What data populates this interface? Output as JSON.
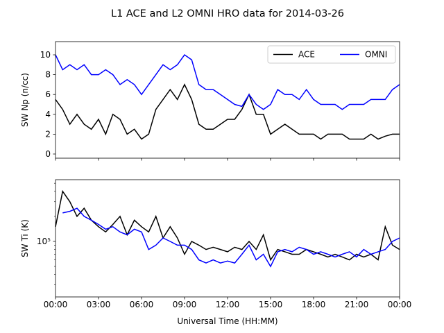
{
  "title": "L1 ACE and L2 OMNI HRO data for 2014-03-26",
  "chart_data": [
    {
      "type": "line",
      "ylabel": "SW Np (n/cc)",
      "legend": "upper right",
      "xlim": [
        0,
        24
      ],
      "xticks": [
        0,
        3,
        6,
        9,
        12,
        15,
        18,
        21,
        24
      ],
      "ylim": [
        -0.42,
        11.33
      ],
      "yticks": [
        0,
        2,
        4,
        6,
        8,
        10
      ],
      "x": [
        0,
        0.5,
        1,
        1.5,
        2,
        2.5,
        3,
        3.5,
        4,
        4.5,
        5,
        5.5,
        6,
        6.5,
        7,
        7.5,
        8,
        8.5,
        9,
        9.5,
        10,
        10.5,
        11,
        11.5,
        12,
        12.5,
        13,
        13.5,
        14,
        14.5,
        15,
        15.5,
        16,
        16.5,
        17,
        17.5,
        18,
        18.5,
        19,
        19.5,
        20,
        20.5,
        21,
        21.5,
        22,
        22.5,
        23,
        23.5,
        24
      ],
      "series": [
        {
          "name": "ACE",
          "color": "#000000",
          "values": [
            5.5,
            4.5,
            3,
            4,
            3,
            2.5,
            3.5,
            2,
            4,
            3.5,
            2,
            2.5,
            1.5,
            2,
            4.5,
            5.5,
            6.5,
            5.5,
            7,
            5.5,
            3,
            2.5,
            2.5,
            3,
            3.5,
            3.5,
            4.5,
            6,
            4,
            4,
            2,
            2.5,
            3,
            2.5,
            2,
            2,
            2,
            1.5,
            2,
            2,
            2,
            1.5,
            1.5,
            1.5,
            2,
            1.5,
            1.8,
            2,
            2
          ]
        },
        {
          "name": "OMNI",
          "color": "#0000ff",
          "values": [
            10,
            8.5,
            9,
            8.5,
            9,
            8,
            8,
            8.5,
            8,
            7,
            7.5,
            7,
            6,
            7,
            8,
            9,
            8.5,
            9,
            10,
            9.5,
            7,
            6.5,
            6.5,
            6,
            5.5,
            5,
            4.8,
            6,
            5,
            4.5,
            5,
            6.5,
            6,
            6,
            5.5,
            6.5,
            5.5,
            5,
            5,
            5,
            4.5,
            5,
            5,
            5,
            5.5,
            5.5,
            5.5,
            6.5,
            7
          ]
        }
      ]
    },
    {
      "type": "line",
      "ylabel": "SW Ti (K)",
      "xlabel": "Universal Time (HH:MM)",
      "yscale": "log",
      "xlim": [
        0,
        24
      ],
      "xticks": [
        {
          "value": 0,
          "label": "00:00"
        },
        {
          "value": 3,
          "label": "03:00"
        },
        {
          "value": 6,
          "label": "06:00"
        },
        {
          "value": 9,
          "label": "09:00"
        },
        {
          "value": 12,
          "label": "12:00"
        },
        {
          "value": 15,
          "label": "15:00"
        },
        {
          "value": 18,
          "label": "18:00"
        },
        {
          "value": 21,
          "label": "21:00"
        },
        {
          "value": 24,
          "label": "00:00"
        }
      ],
      "ylim": [
        21500,
        552000
      ],
      "yticks": [
        {
          "value": 100000,
          "label": "10⁵"
        }
      ],
      "yminorticks": [
        30000,
        40000,
        50000,
        60000,
        70000,
        80000,
        90000,
        200000,
        300000,
        400000,
        500000
      ],
      "x": [
        0,
        0.5,
        1,
        1.5,
        2,
        2.5,
        3,
        3.5,
        4,
        4.5,
        5,
        5.5,
        6,
        6.5,
        7,
        7.5,
        8,
        8.5,
        9,
        9.5,
        10,
        10.5,
        11,
        11.5,
        12,
        12.5,
        13,
        13.5,
        14,
        14.5,
        15,
        15.5,
        16,
        16.5,
        17,
        17.5,
        18,
        18.5,
        19,
        19.5,
        20,
        20.5,
        21,
        21.5,
        22,
        22.5,
        23,
        23.5,
        24
      ],
      "series": [
        {
          "name": "ACE",
          "color": "#000000",
          "values": [
            150000,
            400000,
            300000,
            200000,
            250000,
            180000,
            150000,
            130000,
            160000,
            200000,
            120000,
            180000,
            150000,
            130000,
            200000,
            110000,
            150000,
            110000,
            70000,
            100000,
            90000,
            80000,
            85000,
            80000,
            75000,
            85000,
            80000,
            100000,
            80000,
            120000,
            60000,
            80000,
            75000,
            70000,
            70000,
            80000,
            75000,
            70000,
            65000,
            70000,
            65000,
            60000,
            70000,
            65000,
            70000,
            60000,
            150000,
            90000,
            80000
          ]
        },
        {
          "name": "OMNI",
          "color": "#0000ff",
          "values": [
            null,
            220000,
            230000,
            250000,
            200000,
            180000,
            160000,
            140000,
            150000,
            130000,
            120000,
            140000,
            130000,
            80000,
            90000,
            110000,
            100000,
            90000,
            90000,
            80000,
            60000,
            55000,
            60000,
            55000,
            58000,
            55000,
            70000,
            90000,
            60000,
            70000,
            50000,
            75000,
            80000,
            75000,
            85000,
            80000,
            70000,
            75000,
            70000,
            65000,
            70000,
            75000,
            65000,
            80000,
            70000,
            75000,
            80000,
            100000,
            110000
          ]
        }
      ]
    }
  ]
}
